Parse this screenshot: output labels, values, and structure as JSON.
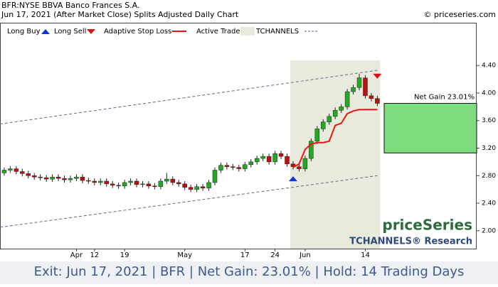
{
  "chart_data": {
    "type": "candlestick",
    "title": "BFR:NYSE BBVA Banco Frances S.A.",
    "subtitle": "Jun 17, 2021 (After Market Close)  Splits Adjusted Daily Chart",
    "copyright": "© priceseries.com",
    "legend": [
      "Long Buy",
      "Long Sell",
      "Adaptive Stop Loss",
      "Active Trade",
      "TCHANNELS"
    ],
    "logo": "priceSeries",
    "logo_subtitle": "TCHANNELS® Research",
    "footer": "Exit: Jun 17, 2021 | BFR | Net Gain: 23.01% | Hold: 14 Trading Days",
    "net_gain_label": "Net Gain 23.01%",
    "colors": {
      "up": "#22aa22",
      "down": "#bb1111",
      "stop": "#ee1111",
      "trade": "#e8ebdc",
      "gain": "#7ddc7d",
      "channel": "#5a6a8a"
    },
    "ylim": [
      1.74,
      4.99
    ],
    "yticks": [
      {
        "value": 2.0,
        "label": "2.00"
      },
      {
        "value": 2.4,
        "label": "2.40"
      },
      {
        "value": 2.8,
        "label": "2.80"
      },
      {
        "value": 3.2,
        "label": "3.20"
      },
      {
        "value": 3.6,
        "label": "3.60"
      },
      {
        "value": 4.0,
        "label": "4.00"
      },
      {
        "value": 4.4,
        "label": "4.40"
      }
    ],
    "xlim": [
      -0.7,
      65.5
    ],
    "xticks": [
      {
        "value": 12,
        "label": "Apr"
      },
      {
        "value": 15,
        "label": "12"
      },
      {
        "value": 20,
        "label": "19"
      },
      {
        "value": 30,
        "label": "May"
      },
      {
        "value": 40,
        "label": "17"
      },
      {
        "value": 45,
        "label": "24"
      },
      {
        "value": 50,
        "label": "Jun"
      },
      {
        "value": 60,
        "label": "14"
      }
    ],
    "open": [
      2.84,
      2.88,
      2.9,
      2.86,
      2.83,
      2.8,
      2.78,
      2.77,
      2.75,
      2.78,
      2.76,
      2.74,
      2.76,
      2.78,
      2.73,
      2.72,
      2.7,
      2.72,
      2.68,
      2.66,
      2.65,
      2.7,
      2.72,
      2.67,
      2.68,
      2.65,
      2.64,
      2.72,
      2.75,
      2.7,
      2.68,
      2.63,
      2.6,
      2.64,
      2.62,
      2.7,
      2.88,
      2.95,
      2.93,
      2.92,
      2.9,
      2.96,
      3.0,
      3.05,
      3.08,
      3.0,
      3.12,
      3.08,
      2.97,
      2.93,
      2.9,
      3.05,
      3.3,
      3.48,
      3.58,
      3.66,
      3.75,
      3.8,
      4.02,
      4.08,
      4.22,
      3.96,
      3.92
    ],
    "high": [
      2.92,
      2.94,
      2.94,
      2.9,
      2.87,
      2.84,
      2.82,
      2.81,
      2.82,
      2.82,
      2.8,
      2.8,
      2.82,
      2.82,
      2.77,
      2.76,
      2.76,
      2.76,
      2.72,
      2.7,
      2.74,
      2.76,
      2.76,
      2.72,
      2.72,
      2.69,
      2.76,
      2.84,
      2.79,
      2.74,
      2.72,
      2.67,
      2.68,
      2.68,
      2.74,
      2.92,
      2.99,
      2.99,
      2.97,
      2.96,
      3.0,
      3.04,
      3.09,
      3.12,
      3.12,
      3.16,
      3.16,
      3.12,
      3.01,
      2.97,
      3.09,
      3.34,
      3.52,
      3.62,
      3.7,
      3.79,
      3.84,
      4.06,
      4.12,
      4.28,
      4.26,
      4.0,
      3.96
    ],
    "low": [
      2.8,
      2.84,
      2.82,
      2.79,
      2.76,
      2.74,
      2.73,
      2.71,
      2.71,
      2.72,
      2.7,
      2.7,
      2.72,
      2.69,
      2.68,
      2.66,
      2.66,
      2.64,
      2.62,
      2.61,
      2.61,
      2.66,
      2.63,
      2.63,
      2.61,
      2.6,
      2.6,
      2.68,
      2.66,
      2.64,
      2.59,
      2.56,
      2.56,
      2.58,
      2.58,
      2.66,
      2.84,
      2.89,
      2.88,
      2.86,
      2.86,
      2.92,
      2.96,
      3.01,
      2.96,
      2.96,
      3.04,
      2.93,
      2.89,
      2.86,
      2.86,
      3.01,
      3.26,
      3.44,
      3.54,
      3.62,
      3.71,
      3.76,
      3.98,
      4.04,
      3.92,
      3.88,
      3.81
    ],
    "close": [
      2.88,
      2.9,
      2.86,
      2.83,
      2.8,
      2.78,
      2.77,
      2.75,
      2.78,
      2.76,
      2.74,
      2.76,
      2.78,
      2.73,
      2.72,
      2.7,
      2.72,
      2.68,
      2.66,
      2.65,
      2.7,
      2.72,
      2.67,
      2.68,
      2.65,
      2.64,
      2.72,
      2.75,
      2.7,
      2.68,
      2.63,
      2.6,
      2.64,
      2.62,
      2.7,
      2.88,
      2.95,
      2.93,
      2.92,
      2.9,
      2.96,
      3.0,
      3.05,
      3.08,
      3.0,
      3.12,
      3.08,
      2.97,
      2.93,
      2.9,
      3.05,
      3.3,
      3.48,
      3.58,
      3.66,
      3.75,
      3.8,
      4.02,
      4.08,
      4.22,
      3.96,
      3.92,
      3.85
    ],
    "stop_loss": [
      null,
      null,
      null,
      null,
      null,
      null,
      null,
      null,
      null,
      null,
      null,
      null,
      null,
      null,
      null,
      null,
      null,
      null,
      null,
      null,
      null,
      null,
      null,
      null,
      null,
      null,
      null,
      null,
      null,
      null,
      null,
      null,
      null,
      null,
      null,
      null,
      null,
      null,
      null,
      null,
      null,
      null,
      null,
      null,
      null,
      null,
      null,
      null,
      2.92,
      2.97,
      3.18,
      3.26,
      3.28,
      3.28,
      3.3,
      3.53,
      3.56,
      3.7,
      3.74,
      3.76,
      3.76,
      3.76,
      3.76
    ],
    "channel_upper": [
      3.55,
      4.33
    ],
    "channel_lower": [
      2.05,
      2.8
    ],
    "trade_range": [
      48,
      62
    ],
    "buy_signal": {
      "index": 48,
      "price": 2.76
    },
    "sell_signal": {
      "index": 62,
      "price": 4.24
    },
    "entry_price": 3.13,
    "exit_price": 3.85
  }
}
